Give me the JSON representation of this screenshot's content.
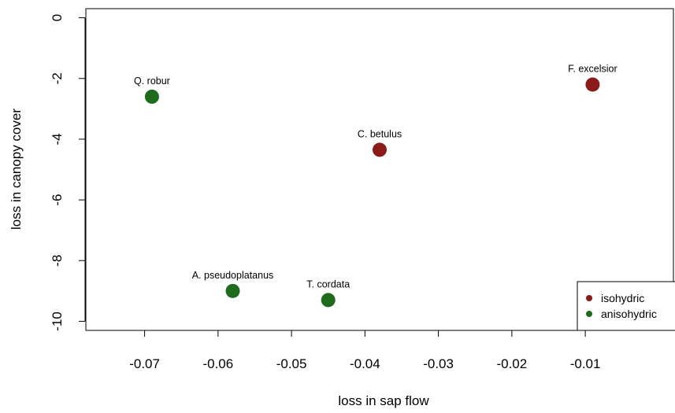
{
  "chart_data": {
    "type": "scatter",
    "xlabel": "loss in sap flow",
    "ylabel": "loss in canopy cover",
    "xlim": [
      -0.078,
      0.002
    ],
    "ylim": [
      -10.3,
      0.3
    ],
    "xticks": [
      -0.07,
      -0.06,
      -0.05,
      -0.04,
      -0.03,
      -0.02,
      -0.01
    ],
    "xtick_labels": [
      "-0.07",
      "-0.06",
      "-0.05",
      "-0.04",
      "-0.03",
      "-0.02",
      "-0.01"
    ],
    "yticks": [
      0,
      -2,
      -4,
      -6,
      -8,
      -10
    ],
    "ytick_labels": [
      "0",
      "-2",
      "-4",
      "-6",
      "-8",
      "-10"
    ],
    "grid": false,
    "legend_position": "bottom-right",
    "points": [
      {
        "label": "Q. robur",
        "x": -0.069,
        "y": -2.6,
        "group": "anisohydric"
      },
      {
        "label": "F. excelsior",
        "x": -0.009,
        "y": -2.2,
        "group": "isohydric"
      },
      {
        "label": "C. betulus",
        "x": -0.038,
        "y": -4.35,
        "group": "isohydric"
      },
      {
        "label": "A. pseudoplatanus",
        "x": -0.058,
        "y": -9.0,
        "group": "anisohydric"
      },
      {
        "label": "T. cordata",
        "x": -0.045,
        "y": -9.3,
        "group": "anisohydric"
      }
    ],
    "series": [
      {
        "name": "isohydric",
        "color": "#8b1a1a"
      },
      {
        "name": "anisohydric",
        "color": "#1e6b1e"
      }
    ]
  }
}
